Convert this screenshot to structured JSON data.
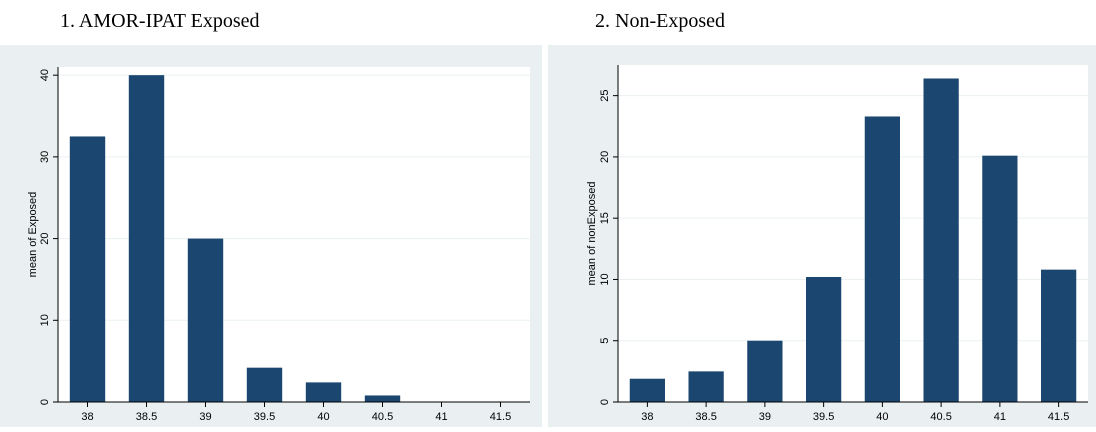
{
  "chart_data": [
    {
      "type": "bar",
      "title": "1. AMOR-IPAT Exposed",
      "ylabel": "mean of Exposed",
      "xlabel": "",
      "categories": [
        "38",
        "38.5",
        "39",
        "39.5",
        "40",
        "40.5",
        "41",
        "41.5"
      ],
      "values": [
        32.5,
        40,
        20,
        4.2,
        2.4,
        0.8,
        0,
        0
      ],
      "yticks": [
        0,
        10,
        20,
        30,
        40
      ],
      "ylim": [
        0,
        41
      ],
      "grid": true,
      "bar_color": "#1a4670",
      "background": "#eaf0f2"
    },
    {
      "type": "bar",
      "title": "2. Non-Exposed",
      "ylabel": "mean of nonExposed",
      "xlabel": "",
      "categories": [
        "38",
        "38.5",
        "39",
        "39.5",
        "40",
        "40.5",
        "41",
        "41.5"
      ],
      "values": [
        1.9,
        2.5,
        5.0,
        10.2,
        23.3,
        26.4,
        20.1,
        10.8
      ],
      "yticks": [
        0,
        5,
        10,
        15,
        20,
        25
      ],
      "ylim": [
        0,
        27.5
      ],
      "grid": true,
      "bar_color": "#1a4670",
      "background": "#eaf0f2"
    }
  ]
}
